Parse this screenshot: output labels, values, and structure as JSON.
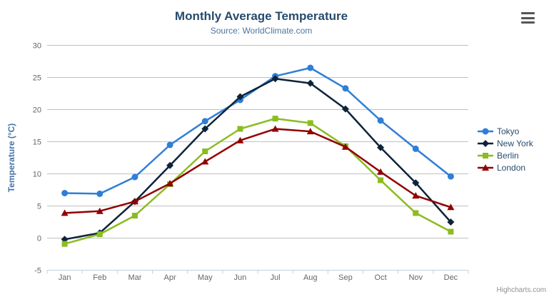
{
  "header": {
    "title": "Monthly Average Temperature",
    "subtitle": "Source: WorldClimate.com"
  },
  "credits": "Highcharts.com",
  "colors": {
    "title": "#274b6d",
    "subtitle": "#4d759e",
    "axis_tick_label": "#666666",
    "axis_title": "#4572a7",
    "gridline": "#c0c0c0",
    "axis_line": "#c0d0e0",
    "legend_text": "#274b6d",
    "menu_icon": "#565656",
    "credits_text": "#909090"
  },
  "chart_data": {
    "type": "line",
    "title": "Monthly Average Temperature",
    "subtitle": "Source: WorldClimate.com",
    "categories": [
      "Jan",
      "Feb",
      "Mar",
      "Apr",
      "May",
      "Jun",
      "Jul",
      "Aug",
      "Sep",
      "Oct",
      "Nov",
      "Dec"
    ],
    "xlabel": "",
    "ylabel": "Temperature (°C)",
    "ylim": [
      -5,
      30
    ],
    "ytick_step": 5,
    "grid": true,
    "legend_position": "right",
    "series": [
      {
        "name": "Tokyo",
        "color": "#2f7ed8",
        "marker": "circle",
        "values": [
          7.0,
          6.9,
          9.5,
          14.5,
          18.2,
          21.5,
          25.2,
          26.5,
          23.3,
          18.3,
          13.9,
          9.6
        ]
      },
      {
        "name": "New York",
        "color": "#0d233a",
        "marker": "diamond",
        "values": [
          -0.2,
          0.8,
          5.7,
          11.3,
          17.0,
          22.0,
          24.8,
          24.1,
          20.1,
          14.1,
          8.6,
          2.5
        ]
      },
      {
        "name": "Berlin",
        "color": "#8bbc21",
        "marker": "square",
        "values": [
          -0.9,
          0.6,
          3.5,
          8.4,
          13.5,
          17.0,
          18.6,
          17.9,
          14.3,
          9.0,
          3.9,
          1.0
        ]
      },
      {
        "name": "London",
        "color": "#910000",
        "marker": "triangle",
        "values": [
          3.9,
          4.2,
          5.7,
          8.5,
          11.9,
          15.2,
          17.0,
          16.6,
          14.2,
          10.3,
          6.6,
          4.8
        ]
      }
    ]
  }
}
